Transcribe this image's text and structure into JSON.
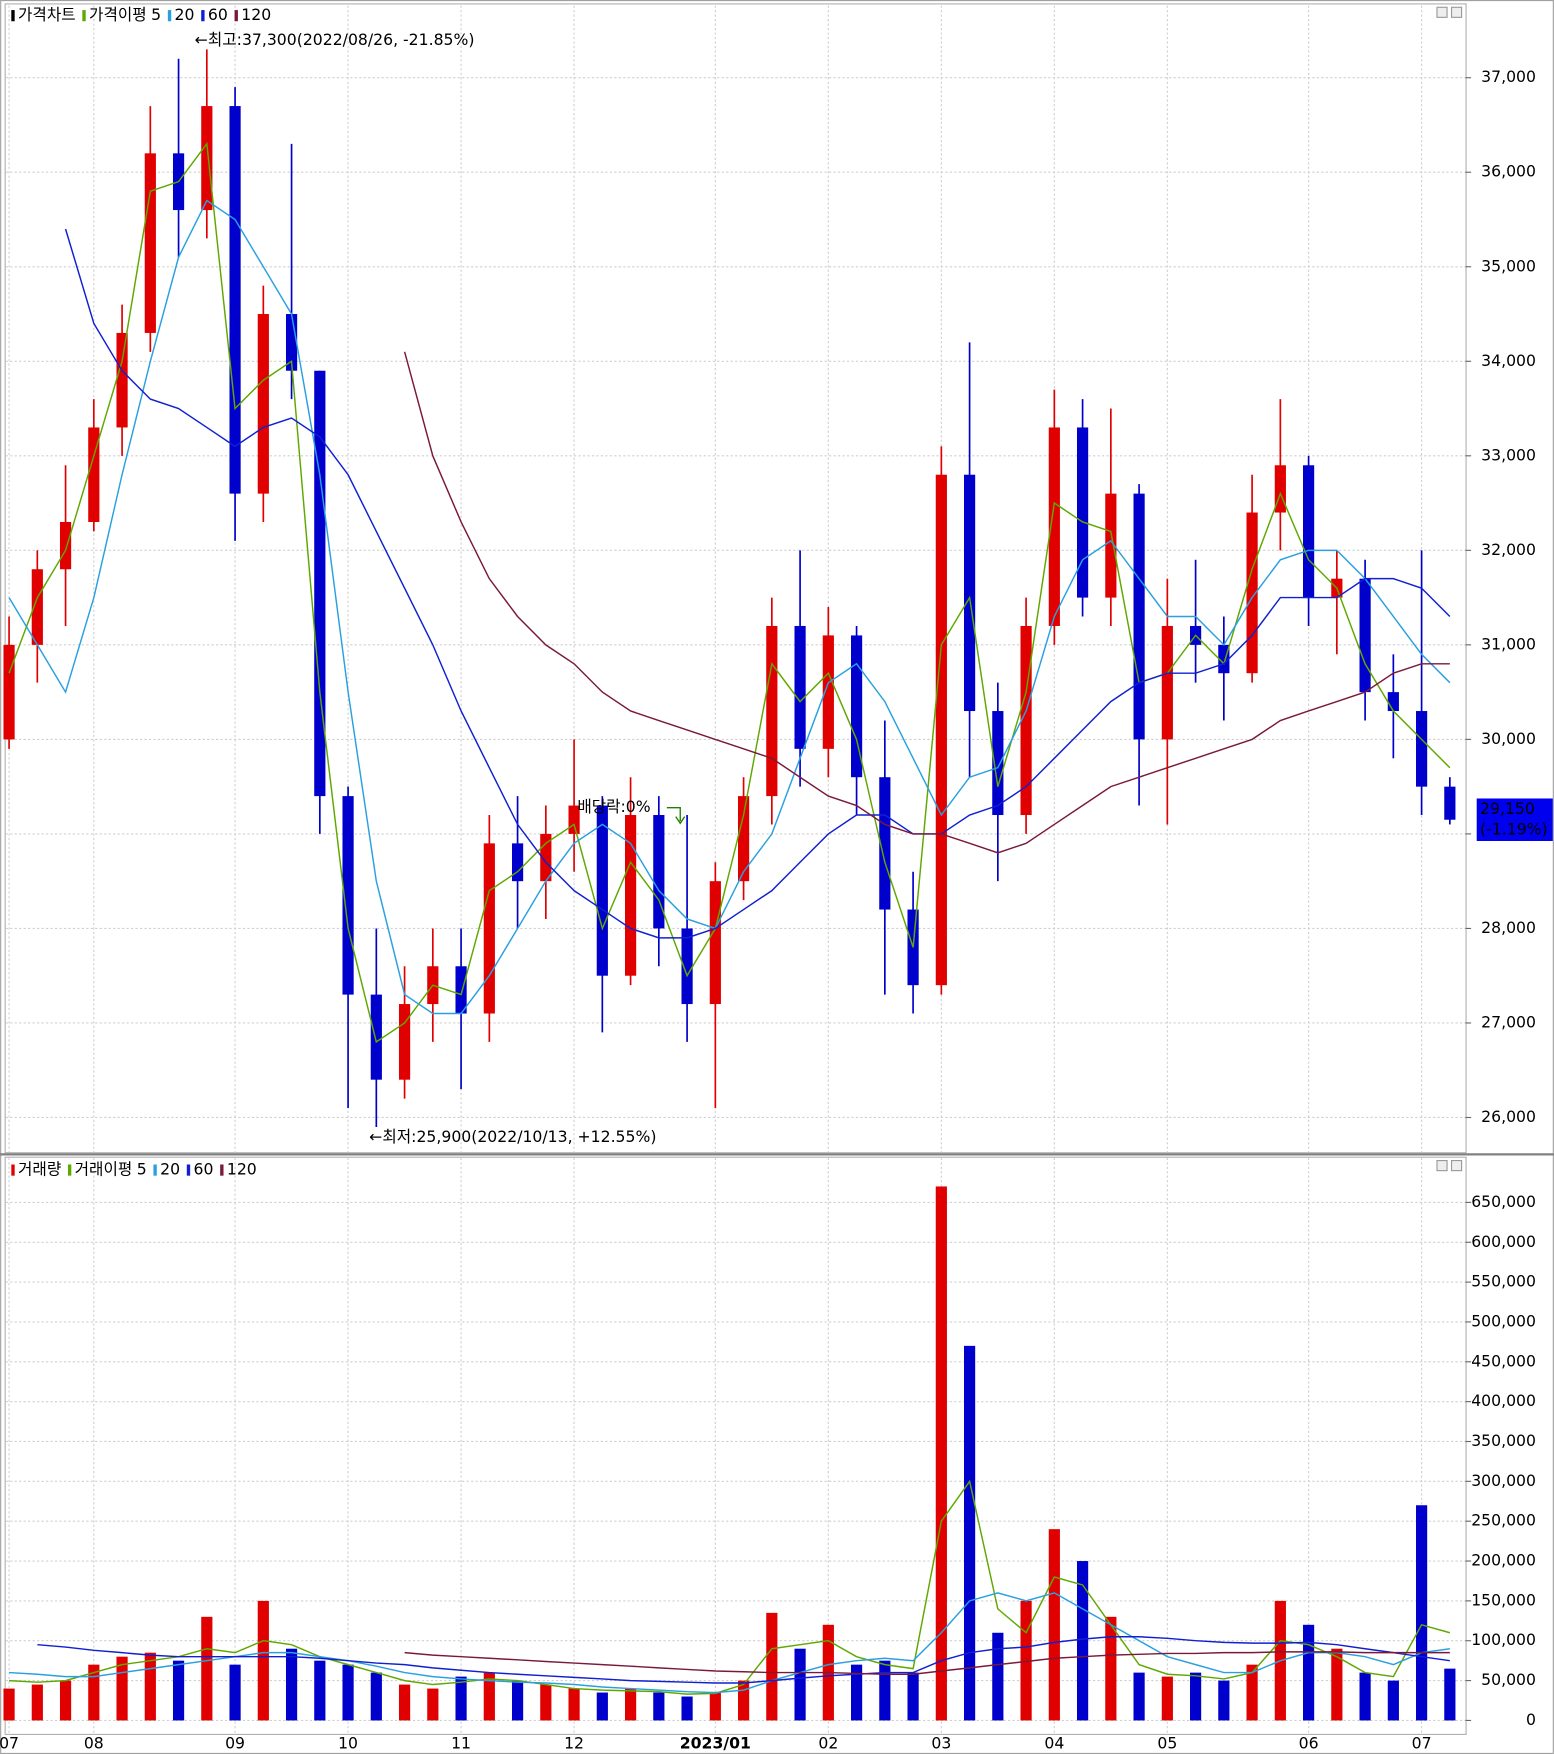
{
  "chart_data": [
    {
      "type": "candlestick",
      "legend_title": "가격차트",
      "ma_title": "가격이평",
      "categories": [
        "07",
        null,
        null,
        "08",
        null,
        null,
        null,
        null,
        "09",
        null,
        null,
        null,
        "10",
        null,
        null,
        null,
        "11",
        null,
        null,
        null,
        "12",
        null,
        null,
        null,
        null,
        "2023/01",
        null,
        null,
        null,
        "02",
        null,
        null,
        null,
        "03",
        null,
        null,
        null,
        "04",
        null,
        null,
        null,
        "05",
        null,
        null,
        null,
        null,
        "06",
        null,
        null,
        null,
        "07",
        null
      ],
      "open": [
        30000,
        31000,
        31800,
        32300,
        33300,
        34300,
        36200,
        35600,
        36700,
        32600,
        34500,
        33900,
        29400,
        27300,
        26400,
        27200,
        27600,
        27100,
        28900,
        28500,
        29000,
        29300,
        27500,
        29200,
        28000,
        27200,
        28500,
        29400,
        31200,
        29900,
        31100,
        29600,
        28200,
        27400,
        32800,
        30300,
        29200,
        31200,
        33300,
        31500,
        32600,
        30000,
        31200,
        31000,
        30700,
        32400,
        32900,
        31500,
        31700,
        30500,
        30300,
        29500
      ],
      "high": [
        31300,
        32000,
        32900,
        33600,
        34600,
        36700,
        37200,
        37300,
        36900,
        34800,
        36300,
        33900,
        29500,
        28000,
        27600,
        28000,
        28000,
        29200,
        29400,
        29300,
        30000,
        29400,
        29600,
        29400,
        29200,
        28700,
        29600,
        31500,
        32000,
        31400,
        31200,
        30200,
        28600,
        33100,
        34200,
        30600,
        31500,
        33700,
        33600,
        33500,
        32700,
        31700,
        31900,
        31300,
        32800,
        33600,
        33000,
        32000,
        31900,
        30900,
        32000,
        29600
      ],
      "low": [
        29900,
        30600,
        31200,
        32200,
        33000,
        34100,
        35100,
        35300,
        32100,
        32300,
        33600,
        29000,
        26100,
        25900,
        26200,
        26800,
        26300,
        26800,
        28000,
        28100,
        28600,
        26900,
        27400,
        27600,
        26800,
        26100,
        28300,
        29100,
        29500,
        29600,
        29200,
        27300,
        27100,
        27300,
        29600,
        28500,
        29000,
        31000,
        31300,
        31200,
        29300,
        29100,
        30600,
        30200,
        30600,
        32000,
        31200,
        30900,
        30200,
        29800,
        29200,
        29100
      ],
      "close": [
        31000,
        31800,
        32300,
        33300,
        34300,
        36200,
        35600,
        36700,
        32600,
        34500,
        33900,
        29400,
        27300,
        26400,
        27200,
        27600,
        27100,
        28900,
        28500,
        29000,
        29300,
        27500,
        29200,
        28000,
        27200,
        28500,
        29400,
        31200,
        29900,
        31100,
        29600,
        28200,
        27400,
        32800,
        30300,
        29200,
        31200,
        33300,
        31500,
        32600,
        30000,
        31200,
        31000,
        30700,
        32400,
        32900,
        31500,
        31700,
        30500,
        30300,
        29500,
        29150
      ],
      "up_color": "#e00000",
      "down_color": "#0000cc",
      "series": [
        {
          "name": "5",
          "color": "#5fa800",
          "values": [
            30700,
            31500,
            32000,
            33000,
            34000,
            35800,
            35900,
            36300,
            33500,
            33800,
            34000,
            30500,
            28000,
            26800,
            27000,
            27400,
            27300,
            28400,
            28600,
            28900,
            29100,
            28000,
            28700,
            28300,
            27500,
            28000,
            29200,
            30800,
            30400,
            30700,
            30000,
            28700,
            27800,
            31000,
            31500,
            29500,
            30500,
            32500,
            32300,
            32200,
            30600,
            30700,
            31100,
            30800,
            31800,
            32600,
            31900,
            31600,
            30800,
            30300,
            30000,
            29700
          ]
        },
        {
          "name": "20",
          "color": "#2aa0e0",
          "values": [
            31500,
            31000,
            30500,
            31500,
            32800,
            34000,
            35100,
            35700,
            35500,
            35000,
            34500,
            32800,
            30500,
            28500,
            27300,
            27100,
            27100,
            27500,
            28000,
            28500,
            28900,
            29100,
            28900,
            28400,
            28100,
            28000,
            28600,
            29000,
            29800,
            30600,
            30800,
            30400,
            29800,
            29200,
            29600,
            29700,
            30300,
            31300,
            31900,
            32100,
            31700,
            31300,
            31300,
            31000,
            31500,
            31900,
            32000,
            32000,
            31700,
            31300,
            30900,
            30600
          ]
        },
        {
          "name": "60",
          "color": "#1020d0",
          "values": [
            null,
            null,
            35400,
            34400,
            33900,
            33600,
            33500,
            33300,
            33100,
            33300,
            33400,
            33200,
            32800,
            32200,
            31600,
            31000,
            30300,
            29700,
            29100,
            28700,
            28400,
            28200,
            28000,
            27900,
            27900,
            28000,
            28200,
            28400,
            28700,
            29000,
            29200,
            29200,
            29000,
            29000,
            29200,
            29300,
            29500,
            29800,
            30100,
            30400,
            30600,
            30700,
            30700,
            30800,
            31100,
            31500,
            31500,
            31500,
            31700,
            31700,
            31600,
            31300
          ]
        },
        {
          "name": "120",
          "color": "#7a1a3a",
          "values": [
            null,
            null,
            null,
            null,
            null,
            null,
            null,
            null,
            null,
            null,
            null,
            null,
            null,
            null,
            34100,
            33000,
            32300,
            31700,
            31300,
            31000,
            30800,
            30500,
            30300,
            30200,
            30100,
            30000,
            29900,
            29800,
            29600,
            29400,
            29300,
            29100,
            29000,
            29000,
            28900,
            28800,
            28900,
            29100,
            29300,
            29500,
            29600,
            29700,
            29800,
            29900,
            30000,
            30200,
            30300,
            30400,
            30500,
            30700,
            30800,
            30800
          ]
        }
      ],
      "ylim": [
        25633,
        37763
      ],
      "yticks": [
        {
          "value": 26000,
          "label": "26,000"
        },
        {
          "value": 27000,
          "label": "27,000"
        },
        {
          "value": 28000,
          "label": "28,000"
        },
        {
          "value": 29000,
          "label": "29,000"
        },
        {
          "value": 30000,
          "label": "30,000"
        },
        {
          "value": 31000,
          "label": "31,000"
        },
        {
          "value": 32000,
          "label": "32,000"
        },
        {
          "value": 33000,
          "label": "33,000"
        },
        {
          "value": 34000,
          "label": "34,000"
        },
        {
          "value": 35000,
          "label": "35,000"
        },
        {
          "value": 36000,
          "label": "36,000"
        },
        {
          "value": 37000,
          "label": "37,000"
        }
      ],
      "annotations": [
        "←최고:37,300(2022/08/26, -21.85%)",
        "←최저:25,900(2022/10/13, +12.55%)",
        "배당락:0%"
      ],
      "last_price_label": "29,150",
      "last_change_label": "(-1.19%)"
    },
    {
      "type": "bar",
      "legend_title": "거래량",
      "ma_title": "거래이평",
      "values": [
        40000,
        45000,
        50000,
        70000,
        80000,
        85000,
        75000,
        130000,
        70000,
        150000,
        90000,
        75000,
        70000,
        60000,
        45000,
        40000,
        55000,
        60000,
        50000,
        45000,
        40000,
        35000,
        40000,
        35000,
        30000,
        35000,
        50000,
        135000,
        90000,
        120000,
        70000,
        75000,
        60000,
        670000,
        470000,
        110000,
        150000,
        240000,
        200000,
        130000,
        60000,
        55000,
        60000,
        50000,
        70000,
        150000,
        120000,
        90000,
        60000,
        50000,
        270000,
        65000
      ],
      "series": [
        {
          "name": "5",
          "color": "#5fa800",
          "values": [
            50000,
            48000,
            50000,
            60000,
            70000,
            75000,
            80000,
            90000,
            85000,
            100000,
            95000,
            80000,
            70000,
            60000,
            50000,
            45000,
            48000,
            52000,
            50000,
            45000,
            40000,
            38000,
            37000,
            36000,
            33000,
            34000,
            45000,
            90000,
            95000,
            100000,
            80000,
            70000,
            65000,
            250000,
            300000,
            140000,
            110000,
            180000,
            170000,
            120000,
            70000,
            58000,
            56000,
            52000,
            60000,
            100000,
            95000,
            80000,
            60000,
            55000,
            120000,
            110000
          ]
        },
        {
          "name": "20",
          "color": "#2aa0e0",
          "values": [
            60000,
            58000,
            55000,
            55000,
            60000,
            65000,
            70000,
            75000,
            80000,
            85000,
            85000,
            80000,
            75000,
            68000,
            60000,
            55000,
            52000,
            50000,
            48000,
            47000,
            45000,
            42000,
            40000,
            38000,
            36000,
            35000,
            38000,
            50000,
            60000,
            70000,
            75000,
            78000,
            75000,
            110000,
            150000,
            160000,
            150000,
            160000,
            140000,
            120000,
            100000,
            80000,
            70000,
            60000,
            60000,
            75000,
            85000,
            85000,
            80000,
            70000,
            85000,
            90000
          ]
        },
        {
          "name": "60",
          "color": "#1020d0",
          "values": [
            null,
            95000,
            92000,
            88000,
            85000,
            82000,
            80000,
            80000,
            80000,
            80000,
            80000,
            78000,
            75000,
            72000,
            70000,
            66000,
            63000,
            60000,
            58000,
            56000,
            54000,
            52000,
            50000,
            49000,
            48000,
            47000,
            47000,
            50000,
            53000,
            56000,
            58000,
            60000,
            60000,
            75000,
            85000,
            90000,
            92000,
            98000,
            102000,
            105000,
            105000,
            103000,
            100000,
            98000,
            97000,
            97000,
            98000,
            95000,
            90000,
            85000,
            80000,
            75000
          ]
        },
        {
          "name": "120",
          "color": "#7a1a3a",
          "values": [
            null,
            null,
            null,
            null,
            null,
            null,
            null,
            null,
            null,
            null,
            null,
            null,
            null,
            null,
            85000,
            82000,
            80000,
            78000,
            76000,
            74000,
            72000,
            70000,
            68000,
            66000,
            64000,
            62000,
            61000,
            60000,
            60000,
            60000,
            59000,
            58000,
            58000,
            62000,
            66000,
            70000,
            74000,
            78000,
            80000,
            82000,
            83000,
            84000,
            84000,
            85000,
            85000,
            86000,
            86000,
            86000,
            85000,
            85000,
            85000,
            85000
          ]
        }
      ],
      "ylim": [
        -16850,
        706000
      ],
      "yticks": [
        0,
        {
          "value": 50000,
          "label": "50,000"
        },
        {
          "value": 100000,
          "label": "100,000"
        },
        {
          "value": 150000,
          "label": "150,000"
        },
        {
          "value": 200000,
          "label": "200,000"
        },
        {
          "value": 250000,
          "label": "250,000"
        },
        {
          "value": 300000,
          "label": "300,000"
        },
        {
          "value": 350000,
          "label": "350,000"
        },
        {
          "value": 400000,
          "label": "400,000"
        },
        {
          "value": 450000,
          "label": "450,000"
        },
        {
          "value": 500000,
          "label": "500,000"
        },
        {
          "value": 550000,
          "label": "550,000"
        },
        {
          "value": 600000,
          "label": "600,000"
        },
        {
          "value": 650000,
          "label": "650,000"
        }
      ]
    }
  ]
}
